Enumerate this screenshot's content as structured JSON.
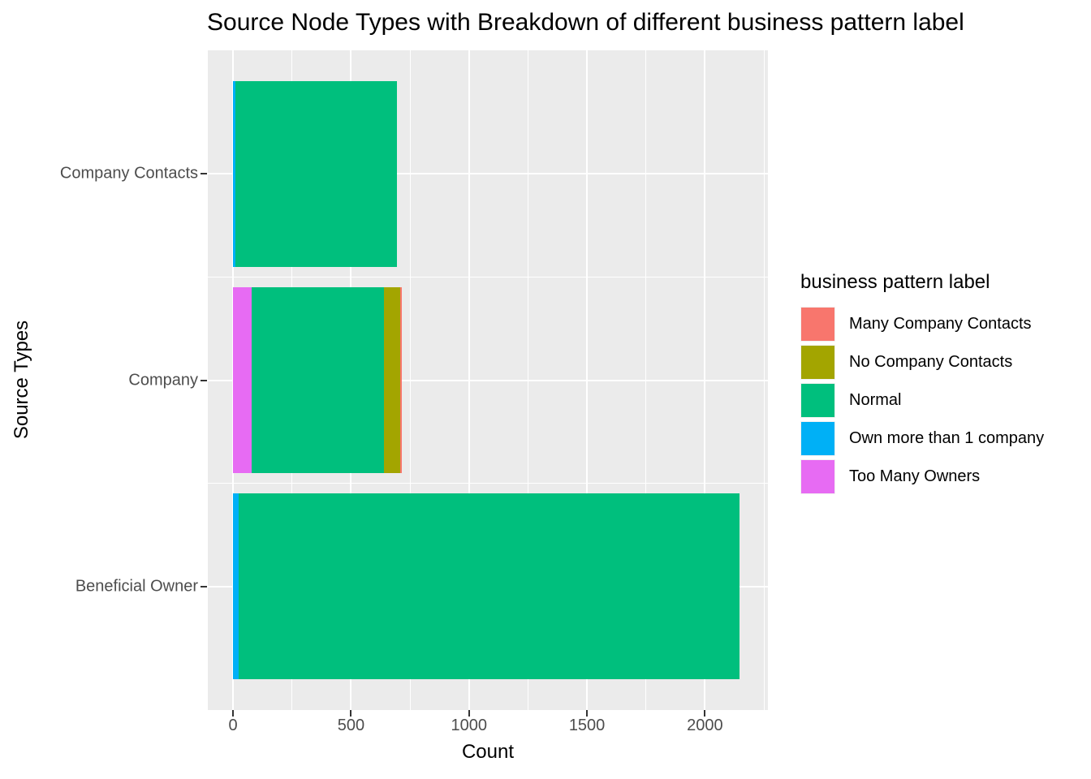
{
  "figure": {
    "title": "Source Node Types with Breakdown of different business pattern label"
  },
  "chart_data": {
    "type": "bar",
    "orientation": "horizontal",
    "stacked": true,
    "title": "Source Node Types with Breakdown of different business pattern label",
    "xlabel": "Count",
    "ylabel": "Source Types",
    "categories": [
      "Company Contacts",
      "Company",
      "Beneficial Owner"
    ],
    "series": [
      {
        "name": "Many Company Contacts",
        "color": "#F8766D",
        "values": [
          0,
          10,
          0
        ]
      },
      {
        "name": "No Company Contacts",
        "color": "#A3A500",
        "values": [
          0,
          67,
          0
        ]
      },
      {
        "name": "Normal",
        "color": "#00BF7D",
        "values": [
          685,
          560,
          2120
        ]
      },
      {
        "name": "Own more than 1 company",
        "color": "#00B0F6",
        "values": [
          10,
          0,
          25
        ]
      },
      {
        "name": "Too Many Owners",
        "color": "#E76BF3",
        "values": [
          0,
          80,
          0
        ]
      }
    ],
    "stack_order_from_axis": [
      "Too Many Owners",
      "Own more than 1 company",
      "Normal",
      "No Company Contacts",
      "Many Company Contacts"
    ],
    "totals": {
      "Company Contacts": 695,
      "Company": 717,
      "Beneficial Owner": 2145
    },
    "x_ticks": [
      0,
      500,
      1000,
      1500,
      2000
    ],
    "x_minor_ticks": [
      250,
      750,
      1250,
      1750,
      2250
    ],
    "xlim": [
      -107,
      2267
    ],
    "grid": "major-minor-white",
    "legend": {
      "title": "business pattern label",
      "position": "right",
      "entries": [
        "Many Company Contacts",
        "No Company Contacts",
        "Normal",
        "Own more than 1 company",
        "Too Many Owners"
      ]
    },
    "style": {
      "panel_bg": "#EBEBEB",
      "grid_color": "#FFFFFF",
      "tick_label_color": "#4D4D4D",
      "tick_mark_color": "#333333",
      "text_color": "#000000"
    }
  }
}
